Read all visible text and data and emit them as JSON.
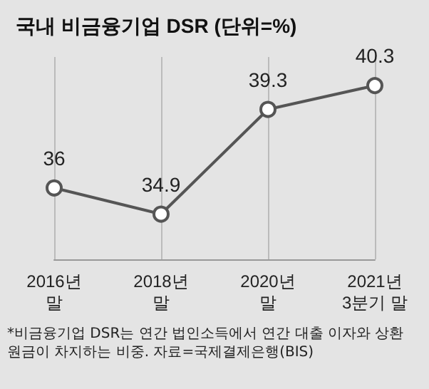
{
  "chart_data": {
    "type": "line",
    "title": "국내 비금융기업 DSR (단위=%)",
    "categories": [
      "2016년\n말",
      "2018년\n말",
      "2020년\n말",
      "2021년\n3분기 말"
    ],
    "series": [
      {
        "color": "#555555",
        "values": [
          36,
          34.9,
          39.3,
          40.3
        ]
      }
    ],
    "data_labels": true,
    "grid": "x",
    "marker": "circle",
    "line_style": "solid",
    "annotations": [
      "*비금융기업 DSR는 연간 법인소득에서 연간 대출 이자와 상환 원금이 차지하는 비중. 자료=국제결제은행(BIS)"
    ]
  }
}
